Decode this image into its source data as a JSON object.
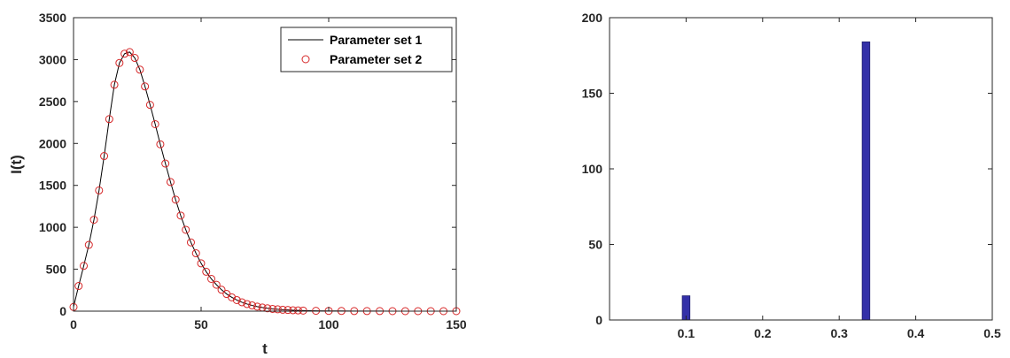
{
  "colors": {
    "line": "#000000",
    "markers": "#d62728",
    "bars": "#3330a8",
    "axes": "#262626"
  },
  "chart_data": [
    {
      "type": "line",
      "xlabel": "t",
      "ylabel": "I(t)",
      "xlim": [
        0,
        150
      ],
      "ylim": [
        0,
        3500
      ],
      "xticks": [
        0,
        50,
        100,
        150
      ],
      "yticks": [
        0,
        500,
        1000,
        1500,
        2000,
        2500,
        3000,
        3500
      ],
      "grid": false,
      "legend_position": "top-right",
      "x": [
        0,
        2,
        4,
        6,
        8,
        10,
        12,
        14,
        16,
        18,
        20,
        22,
        24,
        26,
        28,
        30,
        32,
        34,
        36,
        38,
        40,
        42,
        44,
        46,
        48,
        50,
        52,
        54,
        56,
        58,
        60,
        62,
        64,
        66,
        68,
        70,
        72,
        74,
        76,
        78,
        80,
        82,
        84,
        86,
        88,
        90,
        95,
        100,
        105,
        110,
        115,
        120,
        125,
        130,
        135,
        140,
        145,
        150
      ],
      "series": [
        {
          "name": "Parameter set 1",
          "style": "solid-line",
          "values": [
            50,
            300,
            540,
            790,
            1090,
            1440,
            1850,
            2290,
            2700,
            2960,
            3070,
            3090,
            3020,
            2880,
            2680,
            2460,
            2230,
            1990,
            1760,
            1540,
            1330,
            1140,
            970,
            820,
            690,
            570,
            470,
            385,
            315,
            255,
            205,
            165,
            132,
            106,
            85,
            68,
            54,
            43,
            34,
            27,
            22,
            17,
            14,
            11,
            9,
            7,
            4,
            3,
            2,
            1,
            1,
            1,
            0,
            0,
            0,
            0,
            0,
            0
          ]
        },
        {
          "name": "Parameter set 2",
          "style": "circle-markers",
          "values": [
            50,
            300,
            540,
            790,
            1090,
            1440,
            1850,
            2290,
            2700,
            2960,
            3070,
            3090,
            3020,
            2880,
            2680,
            2460,
            2230,
            1990,
            1760,
            1540,
            1330,
            1140,
            970,
            820,
            690,
            570,
            470,
            385,
            315,
            255,
            205,
            165,
            132,
            106,
            85,
            68,
            54,
            43,
            34,
            27,
            22,
            17,
            14,
            11,
            9,
            7,
            4,
            3,
            2,
            1,
            1,
            1,
            0,
            0,
            0,
            0,
            0,
            0
          ]
        }
      ]
    },
    {
      "type": "bar",
      "xlim": [
        0,
        0.5
      ],
      "ylim": [
        0,
        200
      ],
      "xticks": [
        0.1,
        0.2,
        0.3,
        0.4,
        0.5
      ],
      "yticks": [
        0,
        50,
        100,
        150,
        200
      ],
      "grid": false,
      "bin_width": 0.01,
      "categories": [
        0.1,
        0.335
      ],
      "values": [
        16,
        184
      ]
    }
  ]
}
